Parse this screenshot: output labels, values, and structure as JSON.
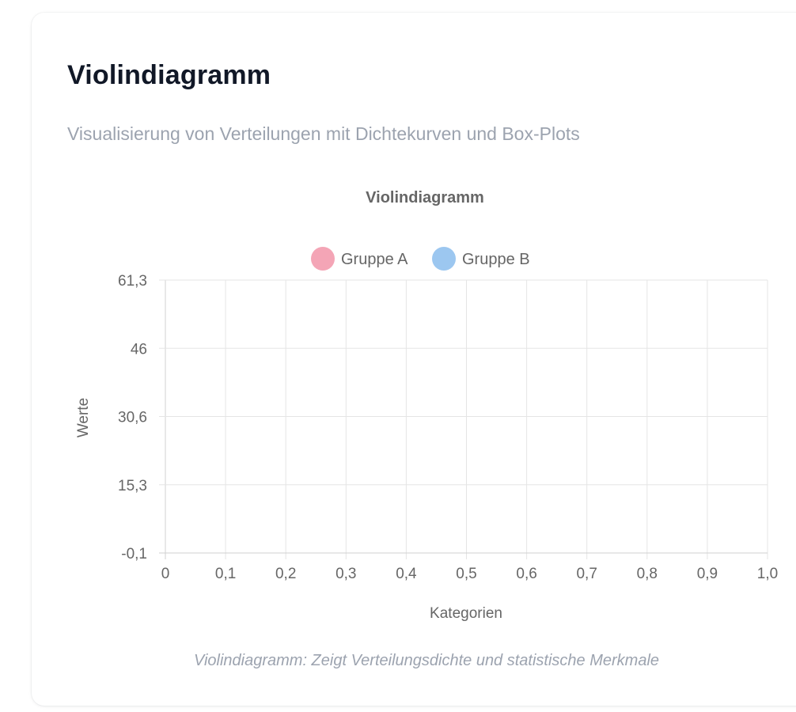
{
  "card": {
    "title": "Violindiagramm",
    "subtitle": "Visualisierung von Verteilungen mit Dichtekurven und Box-Plots",
    "caption": "Violindiagramm: Zeigt Verteilungsdichte und statistische Merkmale"
  },
  "chart_data": {
    "type": "violin",
    "title": "Violindiagramm",
    "xlabel": "Kategorien",
    "ylabel": "Werte",
    "xlim": [
      0,
      1.0
    ],
    "ylim": [
      -0.1,
      61.3
    ],
    "x_ticks": [
      "0",
      "0,1",
      "0,2",
      "0,3",
      "0,4",
      "0,5",
      "0,6",
      "0,7",
      "0,8",
      "0,9",
      "1,0"
    ],
    "y_ticks": [
      "61,3",
      "46",
      "30,6",
      "15,3",
      "-0,1"
    ],
    "grid": true,
    "legend_position": "top",
    "series": [
      {
        "name": "Gruppe A",
        "color": "#f4a5b6",
        "values": []
      },
      {
        "name": "Gruppe B",
        "color": "#9cc7f0",
        "values": []
      }
    ]
  }
}
